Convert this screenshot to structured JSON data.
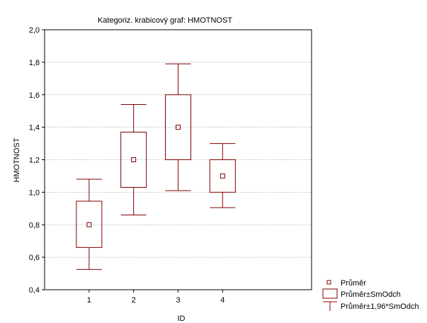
{
  "chart_data": {
    "type": "box",
    "title": "Kategoriz. krabicový graf: HMOTNOST",
    "xlabel": "ID",
    "ylabel": "HMOTNOST",
    "categories": [
      "1",
      "2",
      "3",
      "4"
    ],
    "xlim": [
      0,
      6
    ],
    "ylim": [
      0.4,
      2.0
    ],
    "y_ticks": [
      "0,4",
      "0,6",
      "0,8",
      "1,0",
      "1,2",
      "1,4",
      "1,6",
      "1,8",
      "2,0"
    ],
    "y_tick_values": [
      0.4,
      0.6,
      0.8,
      1.0,
      1.2,
      1.4,
      1.6,
      1.8,
      2.0
    ],
    "grid": "horizontal dotted",
    "legend_position": "bottom-right",
    "series": [
      {
        "name": "Průměr",
        "values": [
          0.8,
          1.2,
          1.4,
          1.1
        ]
      },
      {
        "name": "Průměr±SmOdch",
        "low": [
          0.66,
          1.03,
          1.2,
          1.0
        ],
        "high": [
          0.945,
          1.37,
          1.6,
          1.2
        ]
      },
      {
        "name": "Průměr±1,96*SmOdch",
        "low": [
          0.525,
          0.86,
          1.01,
          0.905
        ],
        "high": [
          1.08,
          1.54,
          1.79,
          1.3
        ]
      }
    ],
    "colors": {
      "series": "#7f0000",
      "grid": "#888888",
      "axis": "#000000"
    }
  }
}
